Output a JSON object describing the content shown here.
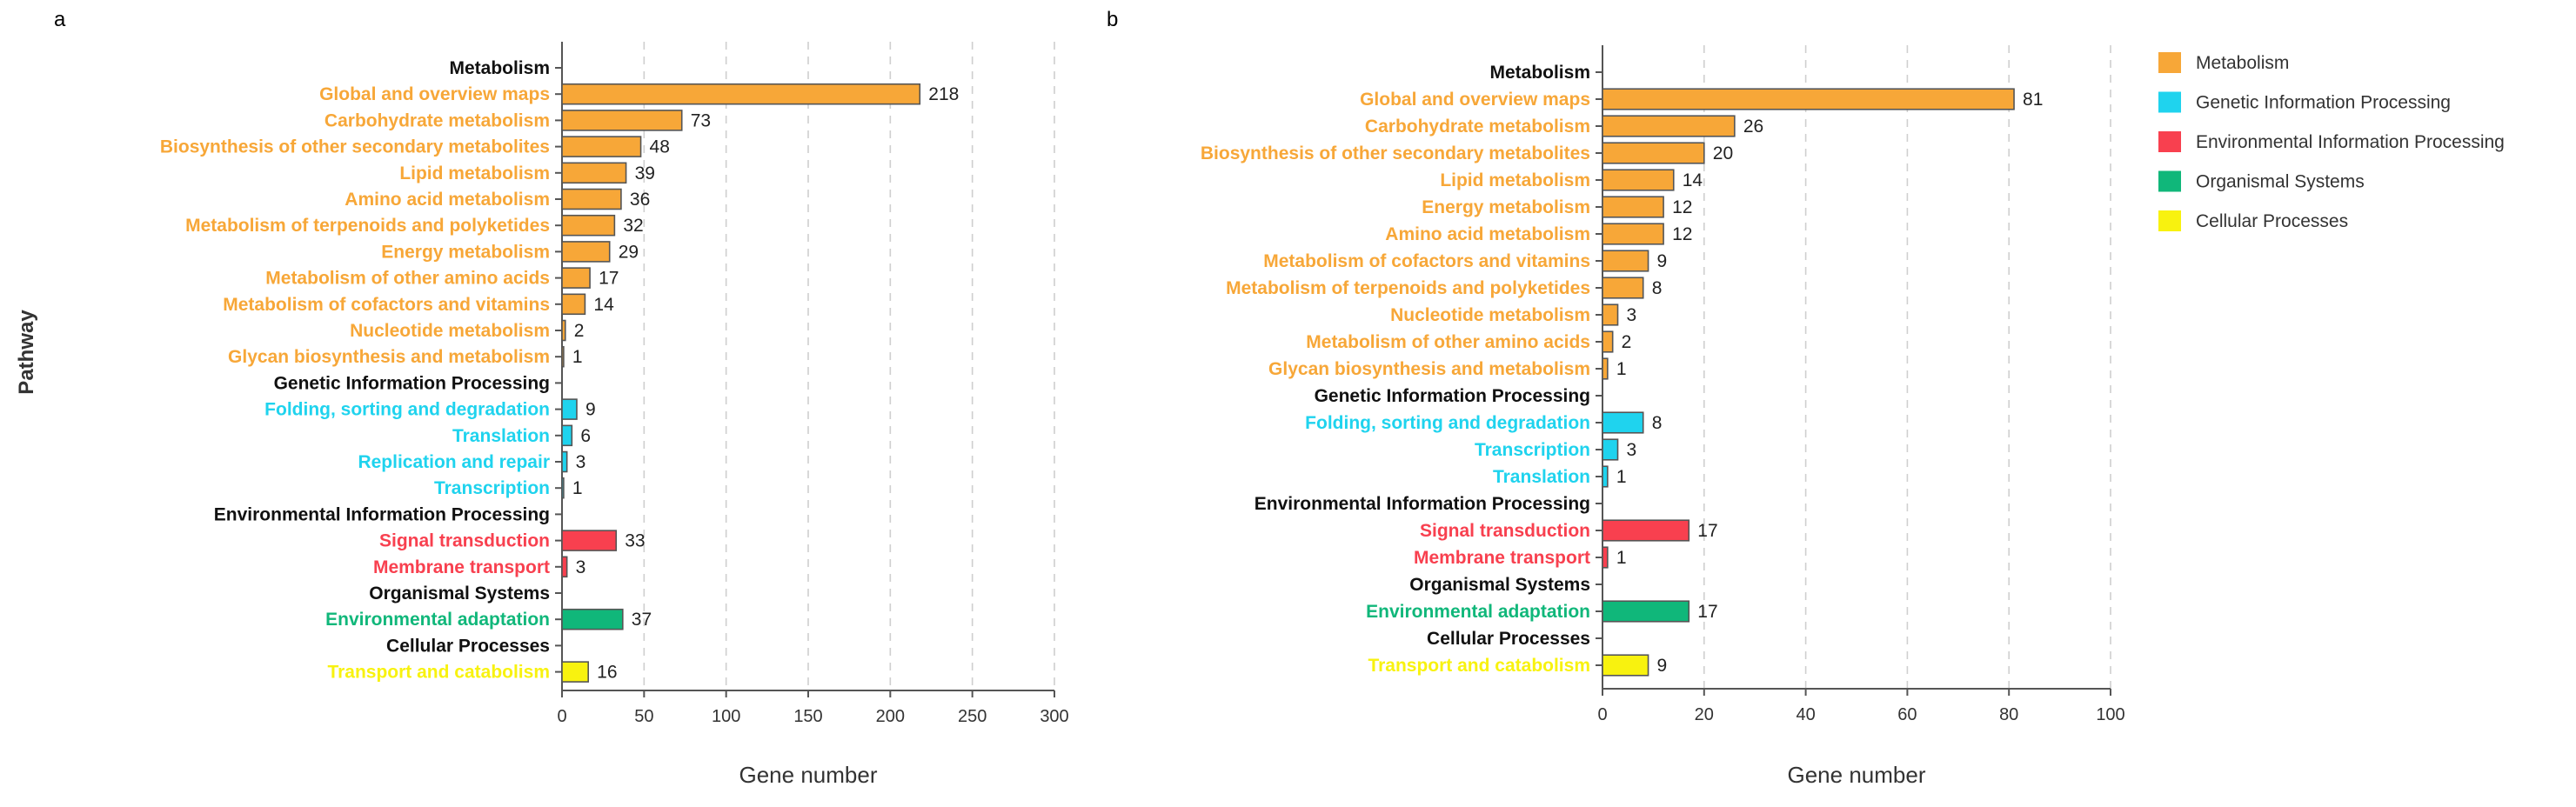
{
  "colors": {
    "Metabolism": "#F7A738",
    "Genetic Information Processing": "#1FD3EE",
    "Environmental Information Processing": "#F8404F",
    "Organismal Systems": "#10B77A",
    "Cellular Processes": "#F8F20F",
    "header": "#111111"
  },
  "legend": [
    {
      "label": "Metabolism"
    },
    {
      "label": "Genetic Information Processing"
    },
    {
      "label": "Environmental Information Processing"
    },
    {
      "label": "Organismal Systems"
    },
    {
      "label": "Cellular Processes"
    }
  ],
  "chart_data": [
    {
      "panel": "a",
      "type": "bar",
      "orientation": "horizontal",
      "xlabel": "Gene number",
      "ylabel": "Pathway",
      "xlim": [
        0,
        300
      ],
      "xticks": [
        0,
        50,
        100,
        150,
        200,
        250,
        300
      ],
      "grid": "vertical dashed",
      "rows": [
        {
          "label": "Metabolism",
          "header": true
        },
        {
          "label": "Global and overview maps",
          "value": 218,
          "group": "Metabolism"
        },
        {
          "label": "Carbohydrate metabolism",
          "value": 73,
          "group": "Metabolism"
        },
        {
          "label": "Biosynthesis of other secondary metabolites",
          "value": 48,
          "group": "Metabolism"
        },
        {
          "label": "Lipid metabolism",
          "value": 39,
          "group": "Metabolism"
        },
        {
          "label": "Amino acid metabolism",
          "value": 36,
          "group": "Metabolism"
        },
        {
          "label": "Metabolism of terpenoids and polyketides",
          "value": 32,
          "group": "Metabolism"
        },
        {
          "label": "Energy metabolism",
          "value": 29,
          "group": "Metabolism"
        },
        {
          "label": "Metabolism of other amino acids",
          "value": 17,
          "group": "Metabolism"
        },
        {
          "label": "Metabolism of cofactors and vitamins",
          "value": 14,
          "group": "Metabolism"
        },
        {
          "label": "Nucleotide metabolism",
          "value": 2,
          "group": "Metabolism"
        },
        {
          "label": "Glycan biosynthesis and metabolism",
          "value": 1,
          "group": "Metabolism"
        },
        {
          "label": "Genetic Information Processing",
          "header": true
        },
        {
          "label": "Folding, sorting and degradation",
          "value": 9,
          "group": "Genetic Information Processing"
        },
        {
          "label": "Translation",
          "value": 6,
          "group": "Genetic Information Processing"
        },
        {
          "label": "Replication and repair",
          "value": 3,
          "group": "Genetic Information Processing"
        },
        {
          "label": "Transcription",
          "value": 1,
          "group": "Genetic Information Processing"
        },
        {
          "label": "Environmental Information Processing",
          "header": true
        },
        {
          "label": "Signal transduction",
          "value": 33,
          "group": "Environmental Information Processing"
        },
        {
          "label": "Membrane transport",
          "value": 3,
          "group": "Environmental Information Processing"
        },
        {
          "label": "Organismal Systems",
          "header": true
        },
        {
          "label": "Environmental adaptation",
          "value": 37,
          "group": "Organismal Systems"
        },
        {
          "label": "Cellular Processes",
          "header": true
        },
        {
          "label": "Transport and catabolism",
          "value": 16,
          "group": "Cellular Processes"
        }
      ]
    },
    {
      "panel": "b",
      "type": "bar",
      "orientation": "horizontal",
      "xlabel": "Gene number",
      "ylabel": "",
      "xlim": [
        0,
        100
      ],
      "xticks": [
        0,
        20,
        40,
        60,
        80,
        100
      ],
      "grid": "vertical dashed",
      "rows": [
        {
          "label": "Metabolism",
          "header": true
        },
        {
          "label": "Global and overview maps",
          "value": 81,
          "group": "Metabolism"
        },
        {
          "label": "Carbohydrate metabolism",
          "value": 26,
          "group": "Metabolism"
        },
        {
          "label": "Biosynthesis of other secondary metabolites",
          "value": 20,
          "group": "Metabolism"
        },
        {
          "label": "Lipid metabolism",
          "value": 14,
          "group": "Metabolism"
        },
        {
          "label": "Energy metabolism",
          "value": 12,
          "group": "Metabolism"
        },
        {
          "label": "Amino acid metabolism",
          "value": 12,
          "group": "Metabolism"
        },
        {
          "label": "Metabolism of cofactors and vitamins",
          "value": 9,
          "group": "Metabolism"
        },
        {
          "label": "Metabolism of terpenoids and polyketides",
          "value": 8,
          "group": "Metabolism"
        },
        {
          "label": "Nucleotide metabolism",
          "value": 3,
          "group": "Metabolism"
        },
        {
          "label": "Metabolism of other amino acids",
          "value": 2,
          "group": "Metabolism"
        },
        {
          "label": "Glycan biosynthesis and metabolism",
          "value": 1,
          "group": "Metabolism"
        },
        {
          "label": "Genetic Information Processing",
          "header": true
        },
        {
          "label": "Folding, sorting and degradation",
          "value": 8,
          "group": "Genetic Information Processing"
        },
        {
          "label": "Transcription",
          "value": 3,
          "group": "Genetic Information Processing"
        },
        {
          "label": "Translation",
          "value": 1,
          "group": "Genetic Information Processing"
        },
        {
          "label": "Environmental Information Processing",
          "header": true
        },
        {
          "label": "Signal transduction",
          "value": 17,
          "group": "Environmental Information Processing"
        },
        {
          "label": "Membrane transport",
          "value": 1,
          "group": "Environmental Information Processing"
        },
        {
          "label": "Organismal Systems",
          "header": true
        },
        {
          "label": "Environmental adaptation",
          "value": 17,
          "group": "Organismal Systems"
        },
        {
          "label": "Cellular Processes",
          "header": true
        },
        {
          "label": "Transport and catabolism",
          "value": 9,
          "group": "Cellular Processes"
        }
      ]
    }
  ]
}
